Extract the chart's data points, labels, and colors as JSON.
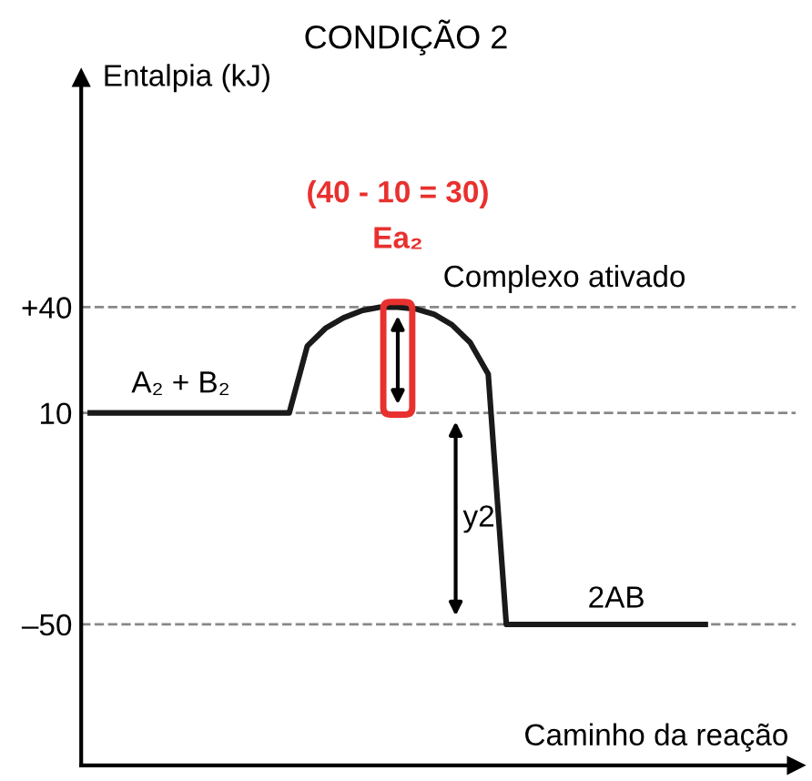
{
  "chart_data": {
    "type": "line",
    "title": "CONDIÇÃO 2",
    "xlabel": "Caminho da reação",
    "ylabel": "Entalpia (kJ)",
    "categories": [
      null,
      null,
      null,
      null,
      null,
      null,
      null,
      null,
      null,
      null,
      null,
      null,
      null,
      null,
      null,
      null,
      null,
      null,
      null,
      null,
      null,
      null,
      null,
      null,
      null,
      null,
      null,
      null,
      null,
      null,
      null,
      null,
      null,
      null,
      null
    ],
    "series": [
      {
        "color": "#1a1a1a",
        "values": [
          10,
          10,
          10,
          10,
          10,
          10,
          10,
          10,
          10,
          10,
          10,
          10,
          29,
          34,
          37,
          39,
          40,
          40,
          39.5,
          38,
          35,
          30,
          21,
          -50,
          -50,
          -50,
          -50,
          -50,
          -50,
          -50,
          -50,
          -50,
          -50,
          -50,
          -50
        ]
      }
    ],
    "ylim": [
      -90,
      105
    ],
    "yticks": [
      {
        "value": 40,
        "label": "+40"
      },
      10,
      {
        "value": -50,
        "label": "–50"
      }
    ],
    "tick_labels": "y",
    "grid": false,
    "legend": false,
    "marker": "none",
    "line_style": "solid",
    "ref_lines": [
      {
        "axis": "y",
        "value": 40,
        "color": "#888888",
        "line_style": "dashed"
      },
      {
        "axis": "y",
        "value": 10,
        "color": "#888888",
        "line_style": "dashed"
      },
      {
        "axis": "y",
        "value": -50,
        "color": "#888888",
        "line_style": "dashed"
      }
    ],
    "annotations": [
      "A₂ + B₂",
      "Complexo ativado",
      "2AB",
      "y2",
      "(40 - 10 = 30)",
      "Ea₂"
    ]
  }
}
